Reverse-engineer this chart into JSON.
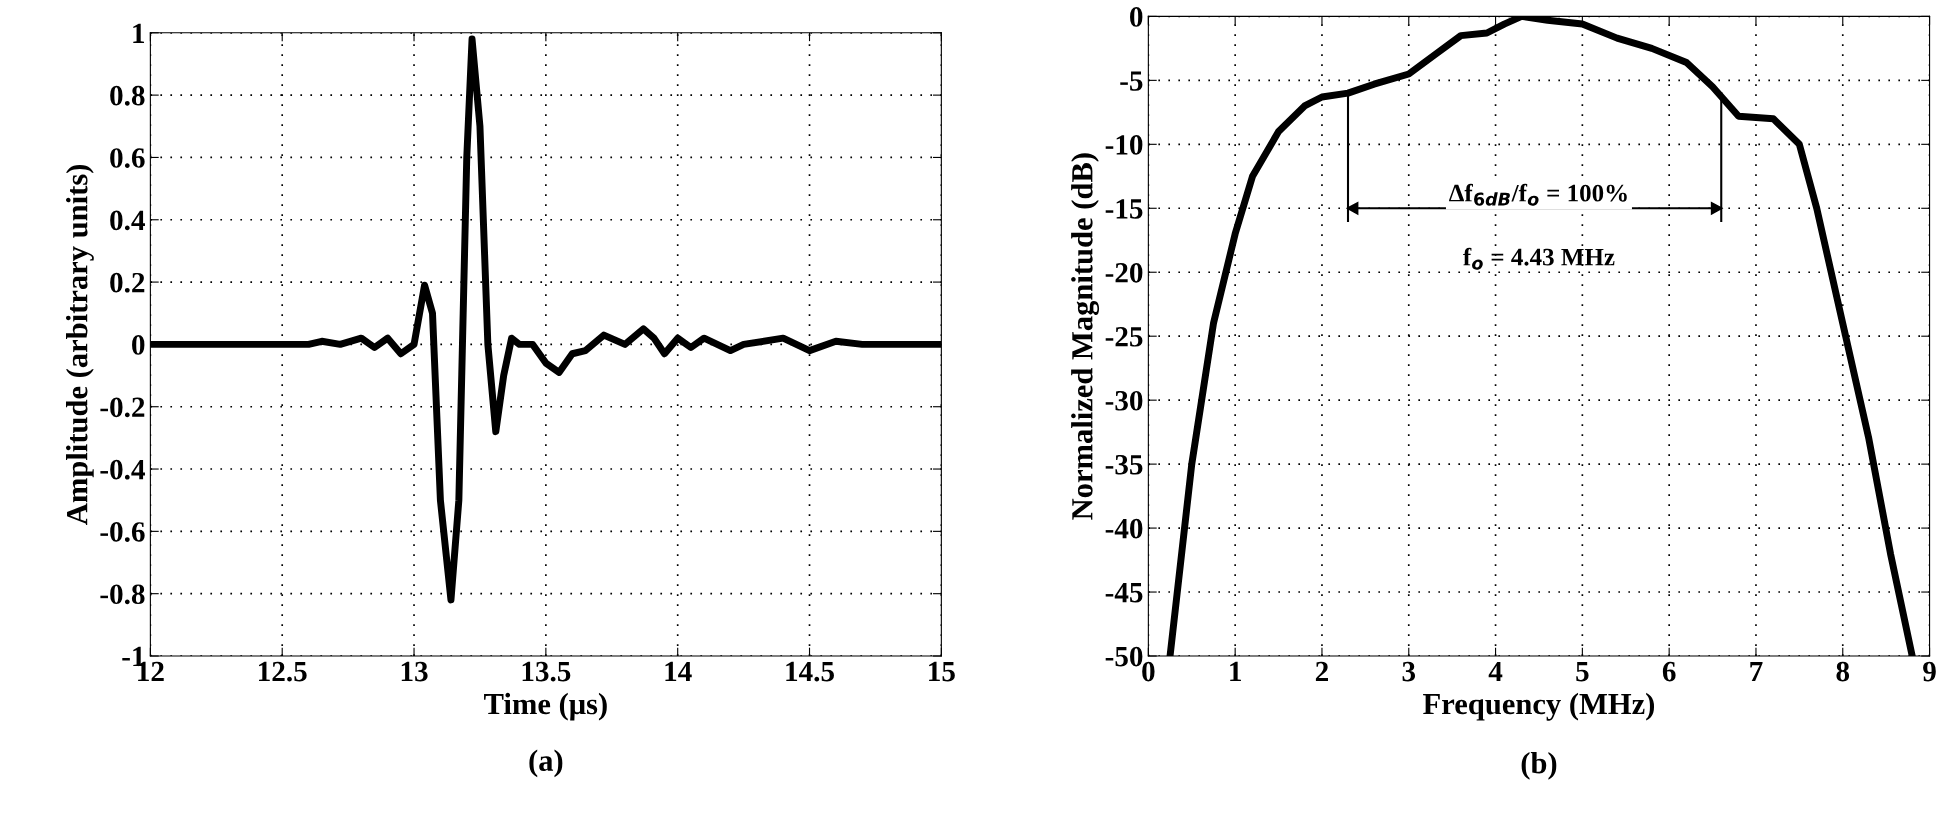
{
  "chart_data": [
    {
      "type": "line",
      "xlabel": "Time (μs)",
      "ylabel": "Amplitude (arbitrary units)",
      "annotations": [
        "(a)"
      ],
      "xlim": [
        12,
        15
      ],
      "ylim": [
        -1,
        1
      ],
      "xticks": [
        12,
        12.5,
        13,
        13.5,
        14,
        14.5,
        15
      ],
      "yticks": [
        -1,
        -0.8,
        -0.6,
        -0.4,
        -0.2,
        0,
        0.2,
        0.4,
        0.6,
        0.8,
        1
      ],
      "grid": true,
      "series": [
        {
          "color": "#000000",
          "x": [
            12.0,
            12.6,
            12.65,
            12.72,
            12.8,
            12.85,
            12.9,
            12.95,
            13.0,
            13.04,
            13.07,
            13.1,
            13.14,
            13.17,
            13.2,
            13.22,
            13.25,
            13.28,
            13.31,
            13.34,
            13.37,
            13.4,
            13.45,
            13.5,
            13.55,
            13.6,
            13.65,
            13.72,
            13.8,
            13.87,
            13.91,
            13.95,
            14.0,
            14.05,
            14.1,
            14.15,
            14.2,
            14.25,
            14.4,
            14.5,
            14.6,
            14.7,
            15.0
          ],
          "values": [
            0,
            0,
            0.01,
            0,
            0.02,
            -0.01,
            0.02,
            -0.03,
            0.0,
            0.19,
            0.1,
            -0.5,
            -0.82,
            -0.5,
            0.6,
            0.98,
            0.7,
            0.0,
            -0.28,
            -0.1,
            0.02,
            0.0,
            0.0,
            -0.06,
            -0.09,
            -0.03,
            -0.02,
            0.03,
            0.0,
            0.05,
            0.02,
            -0.03,
            0.02,
            -0.01,
            0.02,
            0.0,
            -0.02,
            0.0,
            0.02,
            -0.02,
            0.01,
            0.0,
            0.0
          ]
        }
      ]
    },
    {
      "type": "line",
      "xlabel": "Frequency (MHz)",
      "ylabel": "Normalized Magnitude (dB)",
      "annotations": [
        "Δf$_{6dB}$/f$_{o}$ = 100%",
        "f$_{o}$ = 4.43 MHz",
        "(b)"
      ],
      "ref_lines": [
        {
          "axis": "x",
          "value": 2.3
        },
        {
          "axis": "x",
          "value": 6.6
        }
      ],
      "xlim": [
        0,
        9
      ],
      "ylim": [
        -50,
        0
      ],
      "xticks": [
        0,
        1,
        2,
        3,
        4,
        5,
        6,
        7,
        8,
        9
      ],
      "yticks": [
        -50,
        -45,
        -40,
        -35,
        -30,
        -25,
        -20,
        -15,
        -10,
        -5,
        0
      ],
      "grid": true,
      "series": [
        {
          "color": "#000000",
          "x": [
            0.25,
            0.5,
            0.75,
            1.0,
            1.2,
            1.5,
            1.8,
            2.0,
            2.3,
            2.6,
            3.0,
            3.3,
            3.6,
            3.9,
            4.1,
            4.3,
            4.6,
            5.0,
            5.4,
            5.8,
            6.2,
            6.5,
            6.8,
            7.2,
            7.5,
            7.7,
            8.0,
            8.3,
            8.55,
            8.8
          ],
          "values": [
            -50,
            -35,
            -24,
            -17,
            -12.5,
            -9,
            -7,
            -6.3,
            -6.0,
            -5.3,
            -4.5,
            -3,
            -1.5,
            -1.3,
            -0.6,
            0,
            -0.3,
            -0.6,
            -1.7,
            -2.5,
            -3.6,
            -5.5,
            -7.8,
            -8,
            -10,
            -15,
            -24,
            -33,
            -42,
            -50
          ]
        }
      ]
    }
  ]
}
